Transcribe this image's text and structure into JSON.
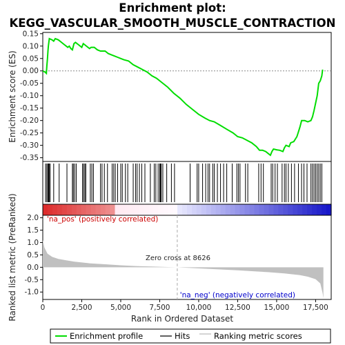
{
  "chart_data": {
    "type": "line",
    "title_line1": "Enrichment plot:",
    "title_line2": "KEGG_VASCULAR_SMOOTH_MUSCLE_CONTRACTION",
    "xlabel": "Rank in Ordered Dataset",
    "ylabel_top": "Enrichment score (ES)",
    "ylabel_bottom": "Ranked list metric (PreRanked)",
    "xlim": [
      0,
      18500
    ],
    "x_ticks": [
      0,
      2500,
      5000,
      7500,
      10000,
      12500,
      15000,
      17500
    ],
    "x_tick_labels": [
      "0",
      "2,500",
      "5,000",
      "7,500",
      "10,000",
      "12,500",
      "15,000",
      "17,500"
    ],
    "es_ylim": [
      -0.365,
      0.155
    ],
    "es_ticks": [
      0.15,
      0.1,
      0.05,
      0.0,
      -0.05,
      -0.1,
      -0.15,
      -0.2,
      -0.25,
      -0.3,
      -0.35
    ],
    "es_tick_labels": [
      "0.15",
      "0.10",
      "0.05",
      "0.00",
      "-0.05",
      "-0.10",
      "-0.15",
      "-0.20",
      "-0.25",
      "-0.30",
      "-0.35"
    ],
    "metric_ylim": [
      -1.3,
      2.1
    ],
    "metric_ticks": [
      2.0,
      1.5,
      1.0,
      0.5,
      0.0,
      -0.5,
      -1.0
    ],
    "metric_tick_labels": [
      "2.0",
      "1.5",
      "1.0",
      "0.5",
      "0.0",
      "-0.5",
      "-1.0"
    ],
    "es_profile": [
      [
        0,
        0
      ],
      [
        150,
        -0.005
      ],
      [
        230,
        -0.01
      ],
      [
        260,
        0.02
      ],
      [
        300,
        0.05
      ],
      [
        330,
        0.08
      ],
      [
        360,
        0.1
      ],
      [
        400,
        0.12
      ],
      [
        420,
        0.13
      ],
      [
        600,
        0.125
      ],
      [
        700,
        0.12
      ],
      [
        800,
        0.13
      ],
      [
        1000,
        0.125
      ],
      [
        1200,
        0.115
      ],
      [
        1400,
        0.105
      ],
      [
        1600,
        0.095
      ],
      [
        1700,
        0.1
      ],
      [
        1800,
        0.09
      ],
      [
        1900,
        0.085
      ],
      [
        2000,
        0.11
      ],
      [
        2100,
        0.115
      ],
      [
        2300,
        0.105
      ],
      [
        2500,
        0.095
      ],
      [
        2600,
        0.11
      ],
      [
        2700,
        0.105
      ],
      [
        2900,
        0.095
      ],
      [
        3000,
        0.09
      ],
      [
        3100,
        0.095
      ],
      [
        3300,
        0.095
      ],
      [
        3500,
        0.085
      ],
      [
        3700,
        0.08
      ],
      [
        4000,
        0.08
      ],
      [
        4200,
        0.07
      ],
      [
        4400,
        0.065
      ],
      [
        4600,
        0.06
      ],
      [
        4800,
        0.055
      ],
      [
        5000,
        0.05
      ],
      [
        5200,
        0.045
      ],
      [
        5500,
        0.04
      ],
      [
        5800,
        0.025
      ],
      [
        6100,
        0.015
      ],
      [
        6400,
        0.005
      ],
      [
        6700,
        -0.005
      ],
      [
        7000,
        -0.02
      ],
      [
        7300,
        -0.03
      ],
      [
        7600,
        -0.045
      ],
      [
        8000,
        -0.065
      ],
      [
        8400,
        -0.09
      ],
      [
        8800,
        -0.11
      ],
      [
        9200,
        -0.135
      ],
      [
        9600,
        -0.155
      ],
      [
        10000,
        -0.175
      ],
      [
        10400,
        -0.19
      ],
      [
        10700,
        -0.2
      ],
      [
        11000,
        -0.205
      ],
      [
        11400,
        -0.22
      ],
      [
        11800,
        -0.235
      ],
      [
        12200,
        -0.25
      ],
      [
        12500,
        -0.265
      ],
      [
        12800,
        -0.27
      ],
      [
        13100,
        -0.28
      ],
      [
        13400,
        -0.29
      ],
      [
        13700,
        -0.305
      ],
      [
        13900,
        -0.32
      ],
      [
        14100,
        -0.32
      ],
      [
        14300,
        -0.325
      ],
      [
        14500,
        -0.335
      ],
      [
        14600,
        -0.34
      ],
      [
        14700,
        -0.325
      ],
      [
        14800,
        -0.315
      ],
      [
        15000,
        -0.318
      ],
      [
        15200,
        -0.32
      ],
      [
        15400,
        -0.325
      ],
      [
        15500,
        -0.31
      ],
      [
        15600,
        -0.3
      ],
      [
        15800,
        -0.305
      ],
      [
        15900,
        -0.29
      ],
      [
        16100,
        -0.285
      ],
      [
        16300,
        -0.265
      ],
      [
        16400,
        -0.245
      ],
      [
        16500,
        -0.225
      ],
      [
        16600,
        -0.2
      ],
      [
        16800,
        -0.2
      ],
      [
        17000,
        -0.205
      ],
      [
        17200,
        -0.2
      ],
      [
        17300,
        -0.185
      ],
      [
        17400,
        -0.16
      ],
      [
        17500,
        -0.13
      ],
      [
        17600,
        -0.1
      ],
      [
        17700,
        -0.05
      ],
      [
        17800,
        -0.04
      ],
      [
        17900,
        -0.02
      ],
      [
        17950,
        0.005
      ]
    ],
    "hit_positions": [
      180,
      260,
      330,
      370,
      410,
      470,
      700,
      1050,
      1550,
      1900,
      1960,
      2050,
      2150,
      2550,
      2620,
      2700,
      2760,
      3050,
      3150,
      3250,
      3700,
      3800,
      3950,
      4150,
      4450,
      4550,
      4650,
      4800,
      5000,
      5100,
      5300,
      5450,
      5800,
      5950,
      6050,
      6200,
      6350,
      6550,
      6900,
      7150,
      7250,
      7400,
      7500,
      7550,
      7600,
      7700,
      7950,
      8250,
      8450,
      9450,
      9900,
      10000,
      10250,
      10450,
      10600,
      10700,
      10900,
      11000,
      11200,
      11400,
      11600,
      11800,
      12150,
      12450,
      12550,
      12650,
      13000,
      13150,
      13850,
      14000,
      14150,
      14650,
      14750,
      14900,
      15050,
      15350,
      15500,
      15600,
      15750,
      15950,
      16150,
      16400,
      16600,
      16750,
      16950,
      17200,
      17300,
      17400,
      17500,
      17600,
      17700,
      17800,
      17900
    ],
    "metric_profile": [
      [
        0,
        1.1
      ],
      [
        100,
        0.8
      ],
      [
        300,
        0.55
      ],
      [
        600,
        0.42
      ],
      [
        1000,
        0.34
      ],
      [
        1500,
        0.28
      ],
      [
        2000,
        0.23
      ],
      [
        3000,
        0.16
      ],
      [
        4000,
        0.12
      ],
      [
        5000,
        0.08
      ],
      [
        6000,
        0.05
      ],
      [
        7000,
        0.03
      ],
      [
        8000,
        0.01
      ],
      [
        8626,
        0.0
      ],
      [
        9500,
        -0.03
      ],
      [
        10500,
        -0.06
      ],
      [
        11500,
        -0.09
      ],
      [
        12500,
        -0.12
      ],
      [
        13500,
        -0.16
      ],
      [
        14500,
        -0.2
      ],
      [
        15500,
        -0.25
      ],
      [
        16500,
        -0.32
      ],
      [
        17000,
        -0.38
      ],
      [
        17500,
        -0.48
      ],
      [
        17800,
        -0.65
      ],
      [
        17950,
        -1.05
      ],
      [
        18000,
        -1.25
      ]
    ],
    "zero_cross": 8626,
    "zero_cross_label": "Zero cross at 8626",
    "pos_label": "'na_pos' (positively correlated)",
    "neg_label": "'na_neg' (negatively correlated)",
    "legend": {
      "items": [
        {
          "label": "Enrichment profile",
          "color": "#00dd00"
        },
        {
          "label": "Hits",
          "color": "#000000"
        },
        {
          "label": "Ranking metric scores",
          "color": "#bbbbbb"
        }
      ]
    },
    "colors": {
      "es_line": "#00dd00",
      "hits": "#000000",
      "metric_fill": "#c0c0c0",
      "pos_label": "#cc0000",
      "neg_label": "#0000cc",
      "zero_line": "#aaaaaa"
    }
  }
}
